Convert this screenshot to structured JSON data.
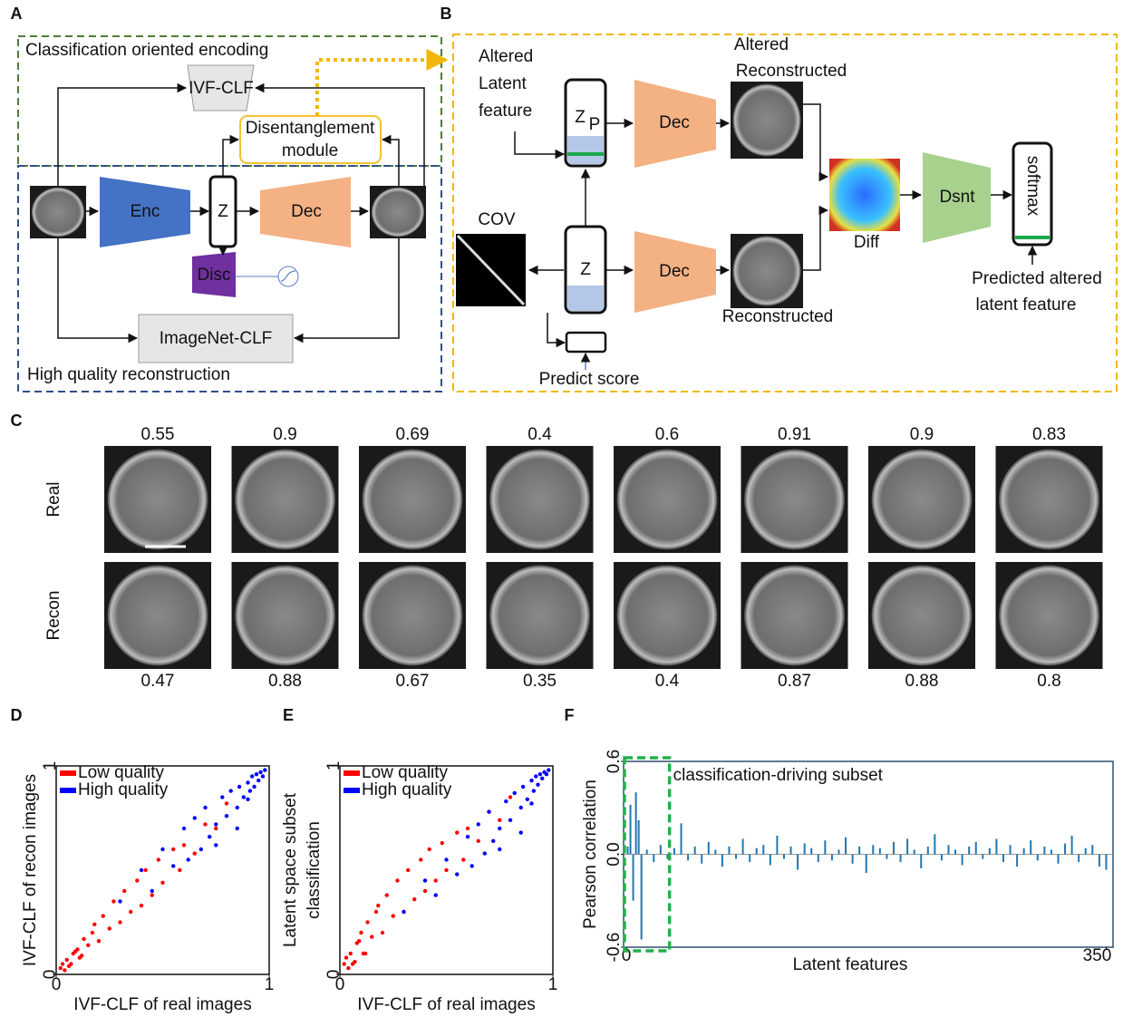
{
  "panel_a": {
    "label": "A",
    "top_title": "Classification oriented encoding",
    "ivf_clf": "IVF-CLF",
    "disentanglement": [
      "Disentanglement",
      "module"
    ],
    "enc": "Enc",
    "z": "Z",
    "dec": "Dec",
    "disc": "Disc",
    "imagenet_clf": "ImageNet-CLF",
    "bottom_title": "High quality reconstruction"
  },
  "panel_b": {
    "label": "B",
    "altered_latent": [
      "Altered",
      "Latent",
      "feature"
    ],
    "zp": "Z",
    "zp_sub": "P",
    "dec_top": "Dec",
    "altered_recon": [
      "Altered",
      "Reconstructed"
    ],
    "diff": "Diff",
    "dsnt": "Dsnt",
    "softmax": "softmax",
    "cov": "COV",
    "z": "Z",
    "dec_bottom": "Dec",
    "reconstructed": "Reconstructed",
    "predict_score": "Predict score",
    "predicted_altered": [
      "Predicted altered",
      "latent feature"
    ]
  },
  "panel_c": {
    "label": "C",
    "rows": [
      "Real",
      "Recon"
    ],
    "real_scores": [
      0.55,
      0.9,
      0.69,
      0.4,
      0.6,
      0.91,
      0.9,
      0.83
    ],
    "recon_scores": [
      0.47,
      0.88,
      0.67,
      0.35,
      0.4,
      0.87,
      0.88,
      0.8
    ]
  },
  "chart_data": [
    {
      "type": "scatter",
      "label": "D",
      "xlabel": "IVF-CLF of real images",
      "ylabel": [
        "IVF-CLF of recon images"
      ],
      "xlim": [
        0,
        1
      ],
      "ylim": [
        0,
        1
      ],
      "xticks": [
        0,
        1
      ],
      "yticks": [
        0,
        1
      ],
      "legend": "upper left",
      "series": [
        {
          "name": "Low quality",
          "color": "#ff0000",
          "x": [
            0.02,
            0.04,
            0.05,
            0.07,
            0.08,
            0.1,
            0.12,
            0.13,
            0.15,
            0.17,
            0.2,
            0.22,
            0.25,
            0.27,
            0.3,
            0.32,
            0.35,
            0.38,
            0.4,
            0.42,
            0.45,
            0.48,
            0.5,
            0.55,
            0.58,
            0.6,
            0.65,
            0.7,
            0.75,
            0.8,
            0.03,
            0.06,
            0.09,
            0.11,
            0.18
          ],
          "values": [
            0.03,
            0.02,
            0.07,
            0.05,
            0.1,
            0.12,
            0.09,
            0.17,
            0.14,
            0.2,
            0.16,
            0.28,
            0.22,
            0.35,
            0.25,
            0.4,
            0.3,
            0.45,
            0.33,
            0.5,
            0.38,
            0.55,
            0.44,
            0.6,
            0.5,
            0.62,
            0.58,
            0.72,
            0.7,
            0.82,
            0.05,
            0.04,
            0.11,
            0.08,
            0.24
          ]
        },
        {
          "name": "High quality",
          "color": "#0000ff",
          "x": [
            0.3,
            0.4,
            0.45,
            0.5,
            0.55,
            0.6,
            0.62,
            0.65,
            0.68,
            0.7,
            0.72,
            0.75,
            0.78,
            0.8,
            0.82,
            0.85,
            0.86,
            0.88,
            0.9,
            0.91,
            0.92,
            0.93,
            0.94,
            0.95,
            0.96,
            0.97,
            0.98,
            0.85,
            0.9,
            0.75
          ],
          "values": [
            0.35,
            0.5,
            0.4,
            0.6,
            0.52,
            0.7,
            0.55,
            0.75,
            0.6,
            0.8,
            0.66,
            0.72,
            0.85,
            0.76,
            0.88,
            0.8,
            0.9,
            0.85,
            0.92,
            0.88,
            0.95,
            0.9,
            0.96,
            0.93,
            0.97,
            0.95,
            0.98,
            0.7,
            0.84,
            0.62
          ]
        }
      ]
    },
    {
      "type": "scatter",
      "label": "E",
      "xlabel": "IVF-CLF of real images",
      "ylabel": [
        "Latent space subset",
        "classification"
      ],
      "xlim": [
        0,
        1
      ],
      "ylim": [
        0,
        1
      ],
      "xticks": [
        0,
        1
      ],
      "yticks": [
        0,
        1
      ],
      "legend": "upper left",
      "series": [
        {
          "name": "Low quality",
          "color": "#ff0000",
          "x": [
            0.02,
            0.04,
            0.05,
            0.07,
            0.08,
            0.1,
            0.12,
            0.13,
            0.15,
            0.17,
            0.2,
            0.22,
            0.25,
            0.27,
            0.3,
            0.32,
            0.35,
            0.38,
            0.4,
            0.42,
            0.45,
            0.48,
            0.5,
            0.55,
            0.58,
            0.6,
            0.65,
            0.7,
            0.75,
            0.8,
            0.03,
            0.06,
            0.09,
            0.11,
            0.18
          ],
          "values": [
            0.05,
            0.03,
            0.1,
            0.06,
            0.15,
            0.2,
            0.1,
            0.25,
            0.18,
            0.3,
            0.2,
            0.38,
            0.28,
            0.45,
            0.3,
            0.5,
            0.36,
            0.55,
            0.4,
            0.6,
            0.45,
            0.63,
            0.5,
            0.68,
            0.55,
            0.7,
            0.64,
            0.78,
            0.74,
            0.85,
            0.08,
            0.05,
            0.16,
            0.1,
            0.33
          ]
        },
        {
          "name": "High quality",
          "color": "#0000ff",
          "x": [
            0.3,
            0.4,
            0.45,
            0.5,
            0.55,
            0.6,
            0.62,
            0.65,
            0.68,
            0.7,
            0.72,
            0.75,
            0.78,
            0.8,
            0.82,
            0.85,
            0.86,
            0.88,
            0.9,
            0.91,
            0.92,
            0.93,
            0.94,
            0.95,
            0.96,
            0.97,
            0.98,
            0.85,
            0.9,
            0.75
          ],
          "values": [
            0.3,
            0.45,
            0.38,
            0.55,
            0.48,
            0.66,
            0.52,
            0.72,
            0.58,
            0.78,
            0.64,
            0.7,
            0.83,
            0.74,
            0.87,
            0.8,
            0.9,
            0.84,
            0.93,
            0.88,
            0.95,
            0.91,
            0.96,
            0.94,
            0.97,
            0.96,
            0.98,
            0.68,
            0.82,
            0.6
          ]
        }
      ]
    },
    {
      "type": "bar",
      "label": "F",
      "xlabel": "Latent features",
      "ylabel": "Pearson correlation",
      "annotation": "classification-driving subset",
      "color": "#1f77b4",
      "xlim": [
        -2,
        355
      ],
      "ylim": [
        -0.6,
        0.6
      ],
      "xticks": [
        0,
        350
      ],
      "yticks": [
        -0.6,
        {
          "value": 0,
          "label": "0.0"
        },
        0.6
      ],
      "x": [
        1,
        3,
        5,
        7,
        9,
        11,
        15,
        20,
        25,
        30,
        35,
        40,
        45,
        50,
        55,
        60,
        65,
        70,
        75,
        80,
        85,
        90,
        95,
        100,
        105,
        110,
        115,
        120,
        125,
        130,
        135,
        140,
        145,
        150,
        155,
        160,
        165,
        170,
        175,
        180,
        185,
        190,
        195,
        200,
        205,
        210,
        215,
        220,
        225,
        230,
        235,
        240,
        245,
        250,
        255,
        260,
        265,
        270,
        275,
        280,
        285,
        290,
        295,
        300,
        305,
        310,
        315,
        320,
        325,
        330,
        335,
        340,
        345,
        350
      ],
      "values": [
        0.05,
        0.32,
        -0.3,
        0.4,
        0.22,
        -0.55,
        0.03,
        -0.05,
        0.06,
        -0.03,
        0.04,
        0.2,
        -0.04,
        0.05,
        -0.06,
        0.08,
        0.03,
        -0.08,
        0.05,
        -0.03,
        0.1,
        -0.05,
        0.04,
        0.06,
        -0.07,
        0.12,
        -0.03,
        0.05,
        -0.1,
        0.07,
        0.04,
        -0.05,
        0.09,
        -0.04,
        0.03,
        0.11,
        -0.06,
        0.05,
        -0.12,
        0.06,
        0.04,
        -0.03,
        0.08,
        -0.05,
        0.1,
        0.03,
        -0.09,
        0.05,
        0.13,
        -0.04,
        0.06,
        0.03,
        -0.07,
        0.05,
        0.08,
        -0.03,
        0.04,
        0.1,
        -0.05,
        0.06,
        -0.08,
        0.04,
        0.09,
        -0.04,
        0.05,
        0.03,
        -0.06,
        0.07,
        0.12,
        -0.05,
        0.04,
        0.06,
        -0.08,
        -0.1
      ]
    }
  ]
}
